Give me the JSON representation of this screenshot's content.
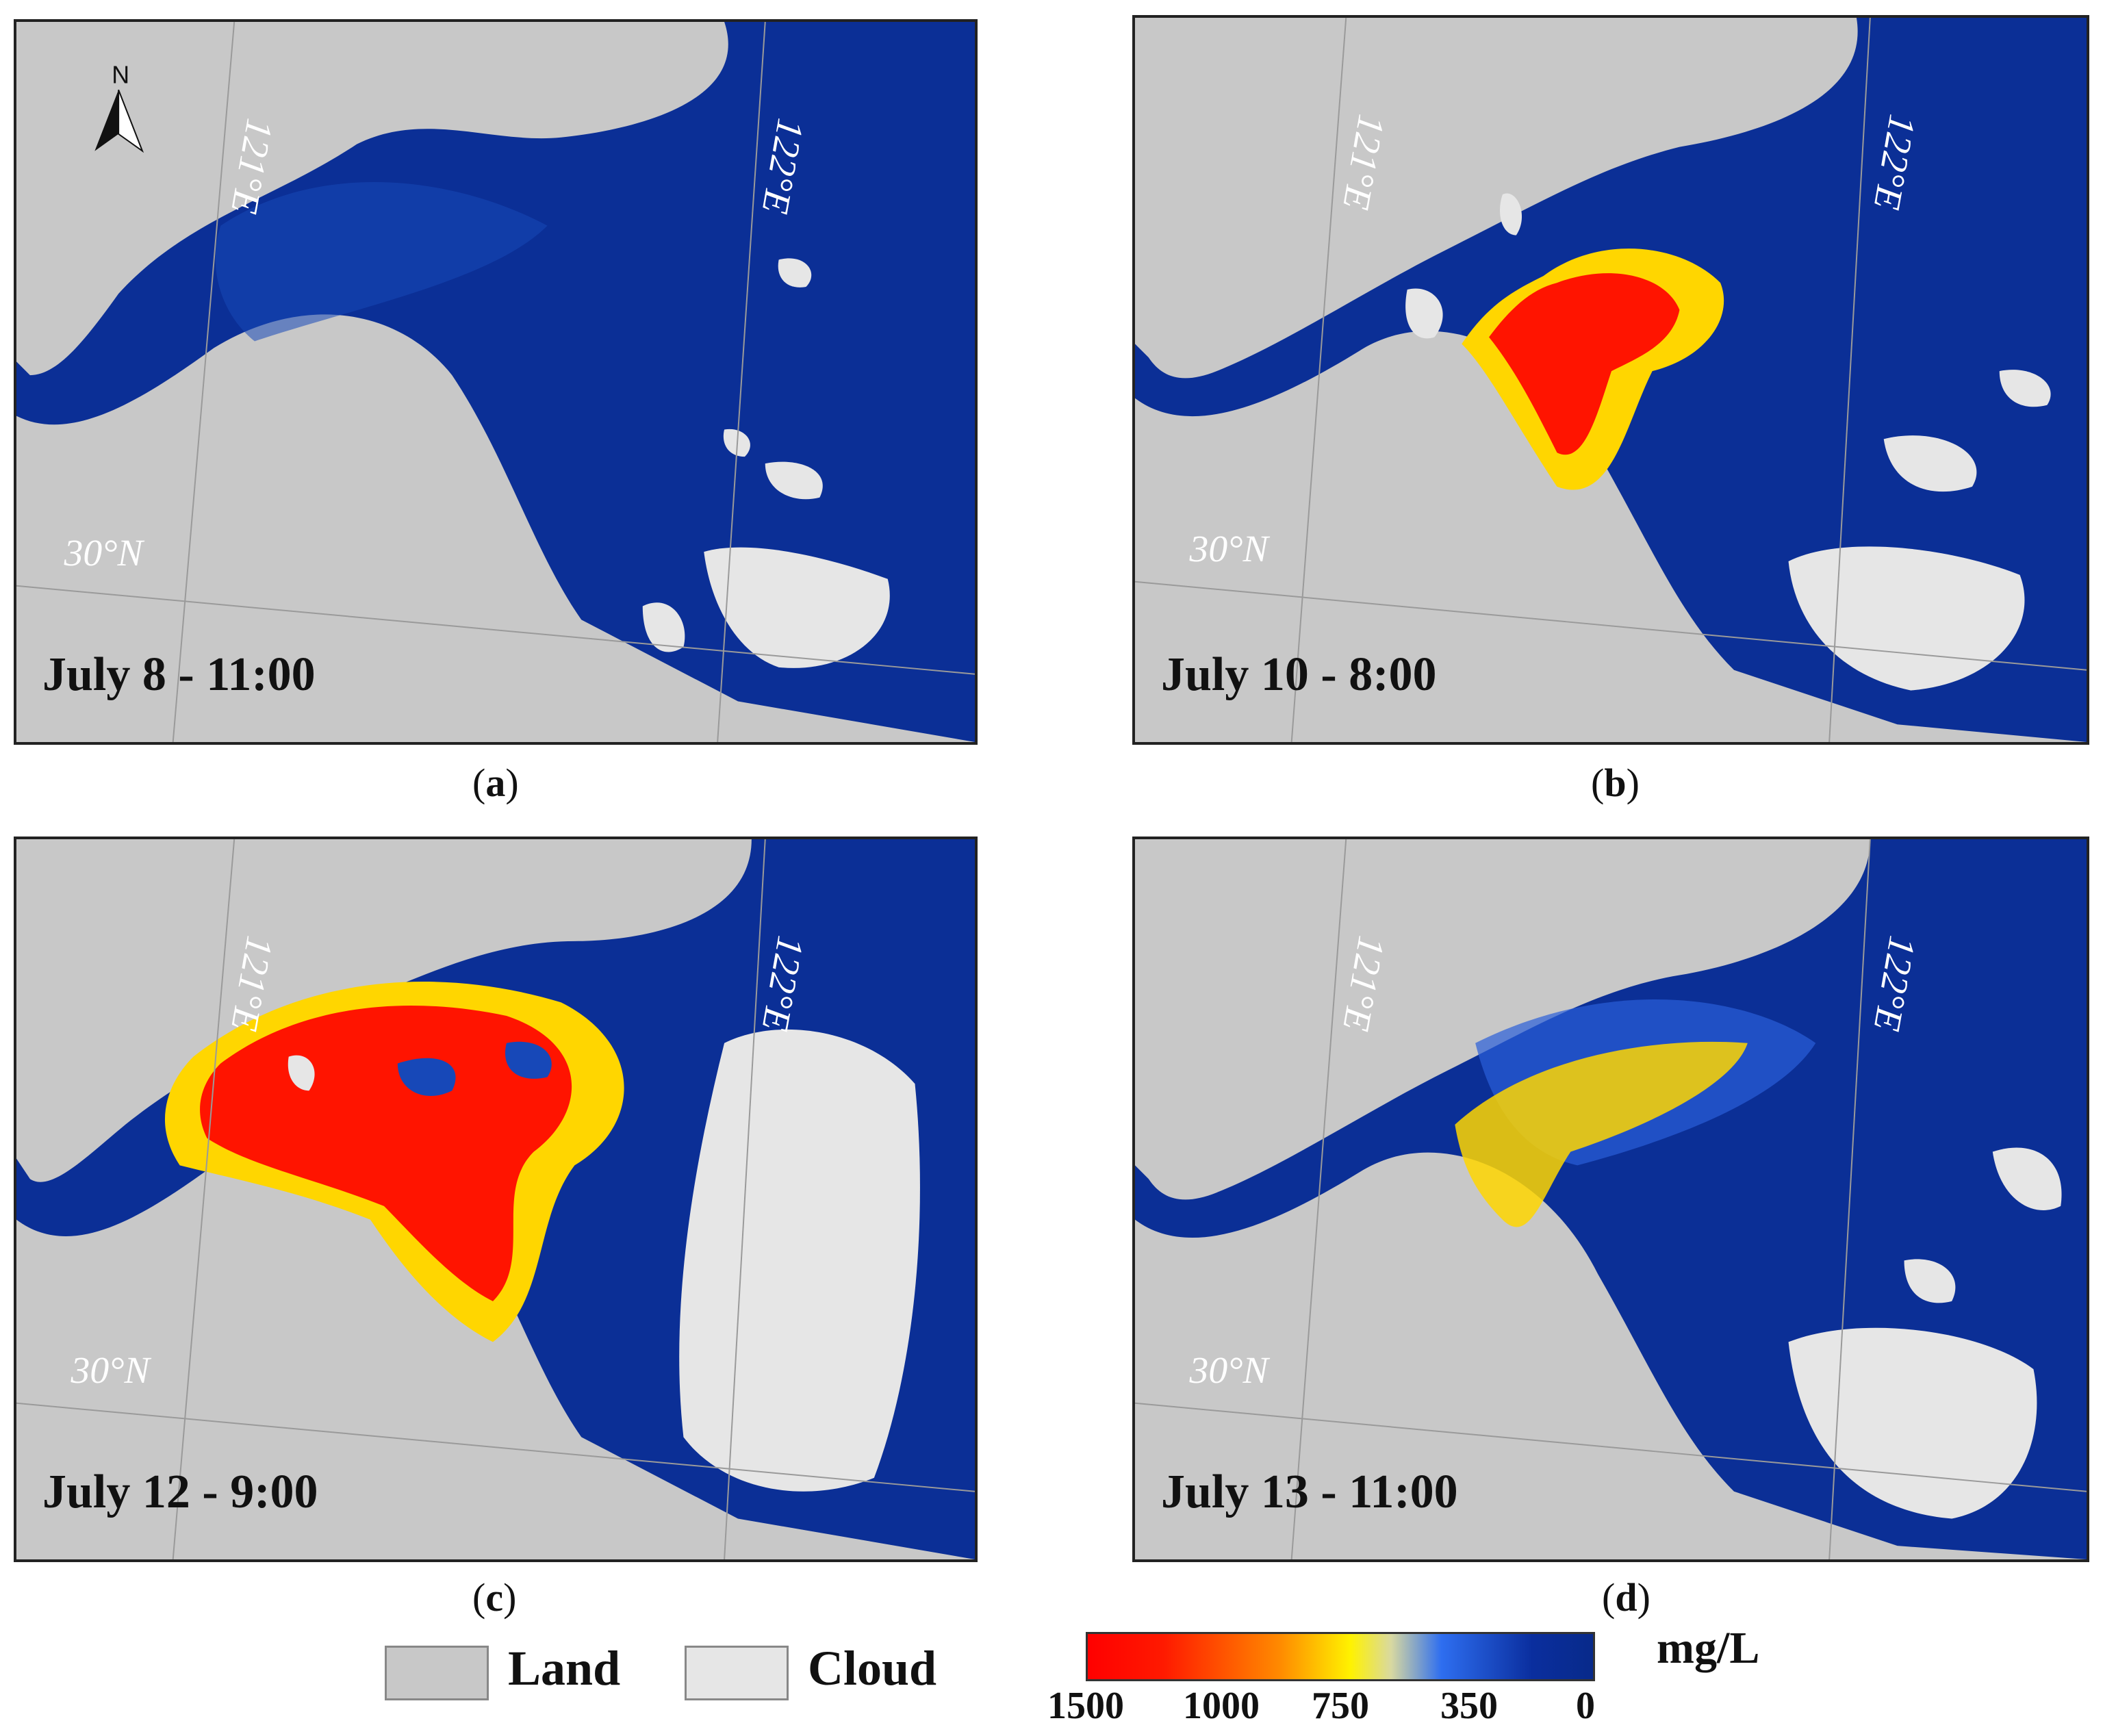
{
  "panels": [
    {
      "id": "a",
      "date": "July 8 - 11:00",
      "caption": "a",
      "lon1": "121°E",
      "lon2": "122°E",
      "lat": "30°N",
      "north": "N"
    },
    {
      "id": "b",
      "date": "July 10 - 8:00",
      "caption": "b",
      "lon1": "121°E",
      "lon2": "122°E",
      "lat": "30°N"
    },
    {
      "id": "c",
      "date": "July 12 - 9:00",
      "caption": "c",
      "lon1": "121°E",
      "lon2": "122°E",
      "lat": "30°N"
    },
    {
      "id": "d",
      "date": "July 13 - 11:00",
      "caption": "d",
      "lon1": "121°E",
      "lon2": "122°E",
      "lat": "30°N"
    }
  ],
  "legend": {
    "land": "Land",
    "cloud": "Cloud",
    "unit": "mg/L",
    "ticks": [
      "1500",
      "1000",
      "750",
      "350",
      "0"
    ],
    "colors": {
      "land": "#c8c8c8",
      "cloud": "#e6e6e6",
      "low": "#082a8a",
      "high": "#ff0000"
    }
  }
}
